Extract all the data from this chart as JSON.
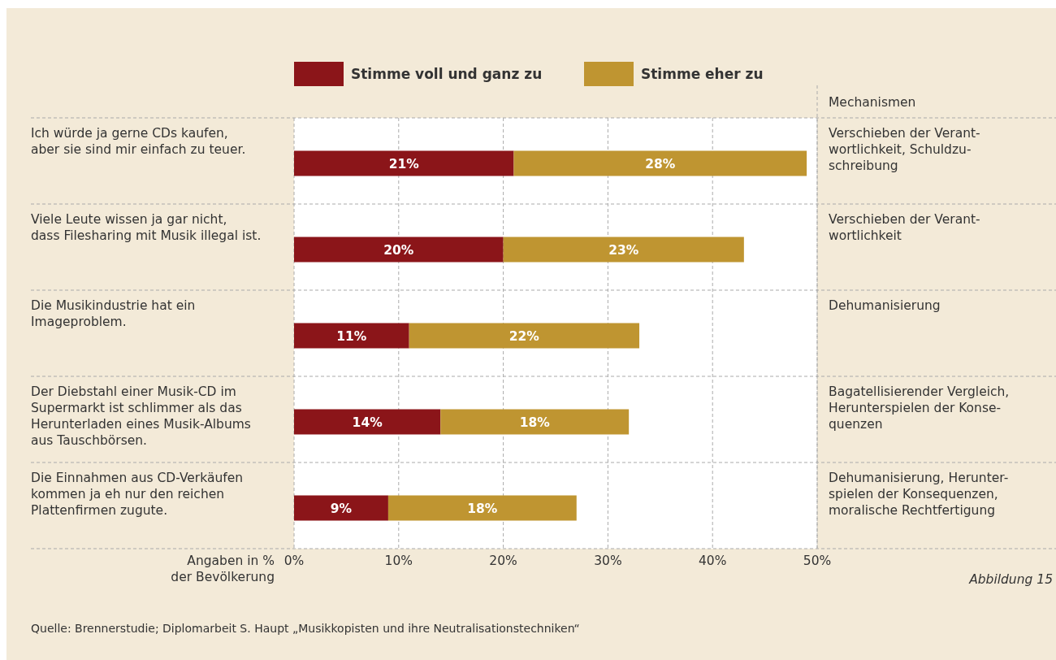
{
  "chart_data": {
    "type": "bar",
    "orientation": "horizontal",
    "stacked": true,
    "categories": [
      "Ich würde ja gerne CDs kaufen,\naber sie sind mir einfach zu teuer.",
      "Viele Leute wissen ja gar nicht,\ndass Filesharing mit Musik illegal ist.",
      "Die Musikindustrie hat ein\nImageproblem.",
      "Der Diebstahl einer Musik-CD im\nSupermarkt ist schlimmer als das\nHerunterladen eines Musik-Albums\naus Tauschbörsen.",
      "Die Einnahmen aus CD-Verkäufen\nkommen ja eh nur den reichen\nPlattenfirmen zugute."
    ],
    "series": [
      {
        "name": "Stimme voll und ganz zu",
        "color": "#8b1519",
        "values": [
          21,
          20,
          11,
          14,
          9
        ],
        "value_labels": [
          "21%",
          "20%",
          "11%",
          "14%",
          "9%"
        ]
      },
      {
        "name": "Stimme eher zu",
        "color": "#bf9531",
        "values": [
          28,
          23,
          22,
          18,
          18
        ],
        "value_labels": [
          "28%",
          "23%",
          "22%",
          "18%",
          "18%"
        ]
      }
    ],
    "xlim": [
      0,
      50
    ],
    "xticks": [
      {
        "value": 0,
        "label": "0%"
      },
      {
        "value": 10,
        "label": "10%"
      },
      {
        "value": 20,
        "label": "20%"
      },
      {
        "value": 30,
        "label": "30%"
      },
      {
        "value": 40,
        "label": "40%"
      },
      {
        "value": 50,
        "label": "50%"
      }
    ],
    "grid": "x",
    "legend": "top",
    "annotations": [
      "Mechanismen",
      "Verschieben der Verant-\nwortlichkeit, Schuldzu-\nschreibung",
      "Verschieben der Verant-\nwortlichkeit",
      "Dehumanisierung",
      "Bagatellisierender Vergleich,\nHerunterspielen der Konse-\nquenzen",
      "Dehumanisierung, Herunter-\nspielen der Konsequenzen,\nmoralische Rechtfertigung",
      "Angaben in %\nder Bevölkerung",
      "Abbildung 15",
      "Quelle: Brennerstudie; Diplomarbeit S. Haupt „Musikkopisten und ihre Neutralisationstechniken“"
    ]
  }
}
